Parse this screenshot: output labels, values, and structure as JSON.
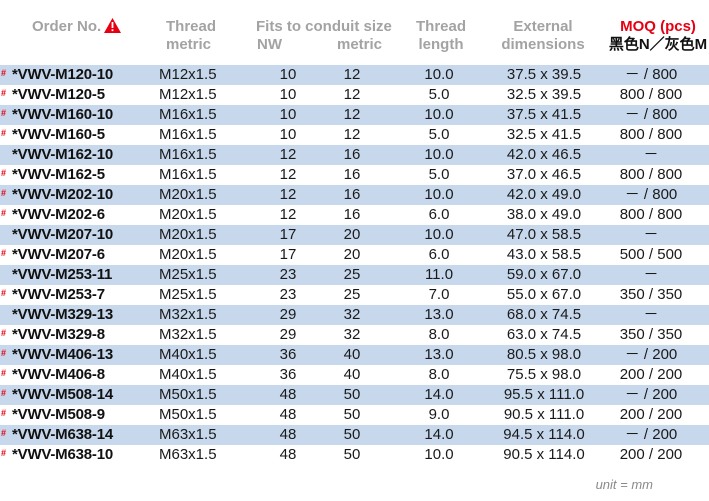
{
  "header": {
    "order_no": "Order No.",
    "thread_metric_l1": "Thread",
    "thread_metric_l2": "metric",
    "fits_title": "Fits to conduit size",
    "fits_nw": "NW",
    "fits_metric": "metric",
    "thread_length_l1": "Thread",
    "thread_length_l2": "length",
    "external_l1": "External",
    "external_l2": "dimensions",
    "moq_title": "MOQ (pcs)",
    "moq_sub": "黑色N／灰色M"
  },
  "accent_color": "#e60012",
  "row_shade_color": "#c7d8ec",
  "rows": [
    {
      "mark": "#",
      "order": "VWV-M120-10",
      "thread": "M12x1.5",
      "nw": "10",
      "metric": "12",
      "length": "10.0",
      "dim": "37.5 x 39.5",
      "moq": "－ / 800"
    },
    {
      "mark": "#",
      "order": "VWV-M120-5",
      "thread": "M12x1.5",
      "nw": "10",
      "metric": "12",
      "length": "5.0",
      "dim": "32.5 x 39.5",
      "moq": "800 / 800"
    },
    {
      "mark": "#",
      "order": "VWV-M160-10",
      "thread": "M16x1.5",
      "nw": "10",
      "metric": "12",
      "length": "10.0",
      "dim": "37.5 x 41.5",
      "moq": "－ / 800"
    },
    {
      "mark": "#",
      "order": "VWV-M160-5",
      "thread": "M16x1.5",
      "nw": "10",
      "metric": "12",
      "length": "5.0",
      "dim": "32.5 x 41.5",
      "moq": "800 / 800"
    },
    {
      "mark": "",
      "order": "VWV-M162-10",
      "thread": "M16x1.5",
      "nw": "12",
      "metric": "16",
      "length": "10.0",
      "dim": "42.0 x 46.5",
      "moq": "－"
    },
    {
      "mark": "#",
      "order": "VWV-M162-5",
      "thread": "M16x1.5",
      "nw": "12",
      "metric": "16",
      "length": "5.0",
      "dim": "37.0 x 46.5",
      "moq": "800 / 800"
    },
    {
      "mark": "#",
      "order": "VWV-M202-10",
      "thread": "M20x1.5",
      "nw": "12",
      "metric": "16",
      "length": "10.0",
      "dim": "42.0 x 49.0",
      "moq": "－ / 800"
    },
    {
      "mark": "#",
      "order": "VWV-M202-6",
      "thread": "M20x1.5",
      "nw": "12",
      "metric": "16",
      "length": "6.0",
      "dim": "38.0 x 49.0",
      "moq": "800 / 800"
    },
    {
      "mark": "",
      "order": "VWV-M207-10",
      "thread": "M20x1.5",
      "nw": "17",
      "metric": "20",
      "length": "10.0",
      "dim": "47.0 x 58.5",
      "moq": "－"
    },
    {
      "mark": "#",
      "order": "VWV-M207-6",
      "thread": "M20x1.5",
      "nw": "17",
      "metric": "20",
      "length": "6.0",
      "dim": "43.0 x 58.5",
      "moq": "500 / 500"
    },
    {
      "mark": "",
      "order": "VWV-M253-11",
      "thread": "M25x1.5",
      "nw": "23",
      "metric": "25",
      "length": "11.0",
      "dim": "59.0 x 67.0",
      "moq": "－"
    },
    {
      "mark": "#",
      "order": "VWV-M253-7",
      "thread": "M25x1.5",
      "nw": "23",
      "metric": "25",
      "length": "7.0",
      "dim": "55.0 x 67.0",
      "moq": "350 / 350"
    },
    {
      "mark": "",
      "order": "VWV-M329-13",
      "thread": "M32x1.5",
      "nw": "29",
      "metric": "32",
      "length": "13.0",
      "dim": "68.0 x 74.5",
      "moq": "－"
    },
    {
      "mark": "#",
      "order": "VWV-M329-8",
      "thread": "M32x1.5",
      "nw": "29",
      "metric": "32",
      "length": "8.0",
      "dim": "63.0 x 74.5",
      "moq": "350 / 350"
    },
    {
      "mark": "#",
      "order": "VWV-M406-13",
      "thread": "M40x1.5",
      "nw": "36",
      "metric": "40",
      "length": "13.0",
      "dim": "80.5 x 98.0",
      "moq": "－ / 200"
    },
    {
      "mark": "#",
      "order": "VWV-M406-8",
      "thread": "M40x1.5",
      "nw": "36",
      "metric": "40",
      "length": "8.0",
      "dim": "75.5 x 98.0",
      "moq": "200 / 200"
    },
    {
      "mark": "#",
      "order": "VWV-M508-14",
      "thread": "M50x1.5",
      "nw": "48",
      "metric": "50",
      "length": "14.0",
      "dim": "95.5 x 111.0",
      "moq": "－ / 200"
    },
    {
      "mark": "#",
      "order": "VWV-M508-9",
      "thread": "M50x1.5",
      "nw": "48",
      "metric": "50",
      "length": "9.0",
      "dim": "90.5 x 111.0",
      "moq": "200 / 200"
    },
    {
      "mark": "#",
      "order": "VWV-M638-14",
      "thread": "M63x1.5",
      "nw": "48",
      "metric": "50",
      "length": "14.0",
      "dim": "94.5 x 114.0",
      "moq": "－ / 200"
    },
    {
      "mark": "#",
      "order": "VWV-M638-10",
      "thread": "M63x1.5",
      "nw": "48",
      "metric": "50",
      "length": "10.0",
      "dim": "90.5 x 114.0",
      "moq": "200 / 200"
    }
  ],
  "unit_note": "unit = mm"
}
